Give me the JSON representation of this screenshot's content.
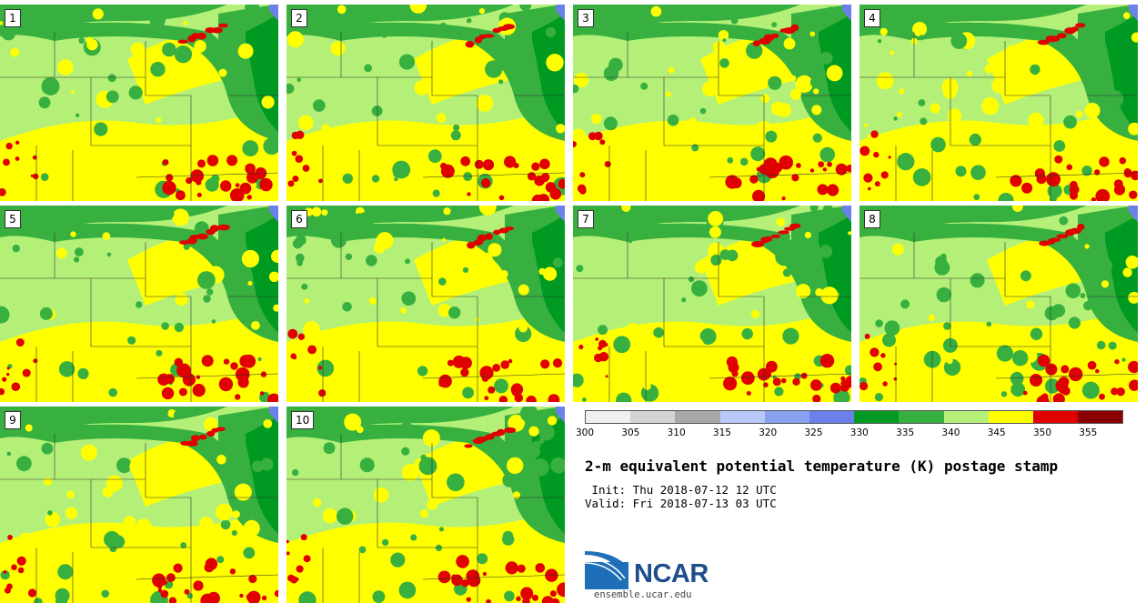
{
  "panels": [
    {
      "label": "1"
    },
    {
      "label": "2"
    },
    {
      "label": "3"
    },
    {
      "label": "4"
    },
    {
      "label": "5"
    },
    {
      "label": "6"
    },
    {
      "label": "7"
    },
    {
      "label": "8"
    },
    {
      "label": "9"
    },
    {
      "label": "10"
    }
  ],
  "colorbar": {
    "colors": [
      "#f0f0f0",
      "#d4d4d4",
      "#a8a8a8",
      "#b8c8f8",
      "#8aa0f0",
      "#6b80e8",
      "#009a22",
      "#37b040",
      "#b4f078",
      "#ffff00",
      "#e00000",
      "#8b0000"
    ],
    "ticks": [
      "300",
      "305",
      "310",
      "315",
      "320",
      "325",
      "330",
      "335",
      "340",
      "345",
      "350",
      "355"
    ]
  },
  "palette": {
    "dark_green": "#009a22",
    "mid_green": "#37b040",
    "light_green": "#b4f078",
    "yellow": "#ffff00",
    "red": "#e00000",
    "lake_blue": "#6b80e8",
    "ncar_blue": "#1f4e8c"
  },
  "title": "2-m equivalent potential temperature (K) postage stamp",
  "init_line": " Init: Thu 2018-07-12 12 UTC",
  "valid_line": "Valid: Fri 2018-07-13 03 UTC",
  "logo": {
    "text": "NCAR",
    "url": "ensemble.ucar.edu"
  }
}
